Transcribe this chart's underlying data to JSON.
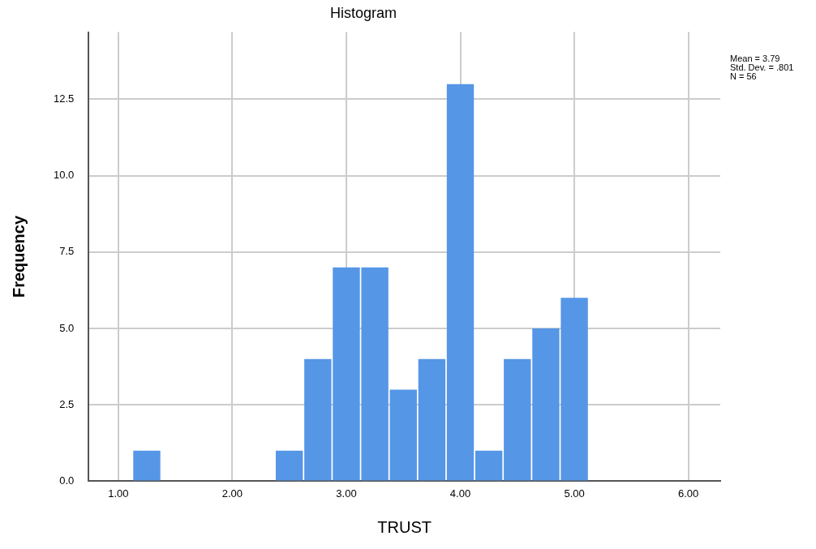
{
  "chart_data": {
    "type": "histogram",
    "title": "Histogram",
    "xlabel": "TRUST",
    "ylabel": "Frequency",
    "bins": [
      1.125,
      1.375,
      1.625,
      1.875,
      2.125,
      2.375,
      2.625,
      2.875,
      3.125,
      3.375,
      3.625,
      3.875,
      4.125,
      4.375,
      4.625,
      4.875,
      5.125
    ],
    "values": [
      1,
      0,
      0,
      0,
      0,
      1,
      4,
      7,
      7,
      3,
      4,
      13,
      1,
      4,
      5,
      6
    ],
    "color": "#5596e6",
    "xlim": [
      0.74,
      6.28
    ],
    "xticks": [
      {
        "value": 1,
        "label": "1.00"
      },
      {
        "value": 2,
        "label": "2.00"
      },
      {
        "value": 3,
        "label": "3.00"
      },
      {
        "value": 4,
        "label": "4.00"
      },
      {
        "value": 5,
        "label": "5.00"
      },
      {
        "value": 6,
        "label": "6.00"
      }
    ],
    "ylim": [
      0,
      14.7
    ],
    "yticks": [
      {
        "value": 0,
        "label": "0.0"
      },
      {
        "value": 2.5,
        "label": "2.5"
      },
      {
        "value": 5,
        "label": "5.0"
      },
      {
        "value": 7.5,
        "label": "7.5"
      },
      {
        "value": 10,
        "label": "10.0"
      },
      {
        "value": 12.5,
        "label": "12.5"
      }
    ],
    "grid": true,
    "annotations": [
      "Mean = 3.79",
      "Std. Dev. = .801",
      "N = 56"
    ]
  }
}
